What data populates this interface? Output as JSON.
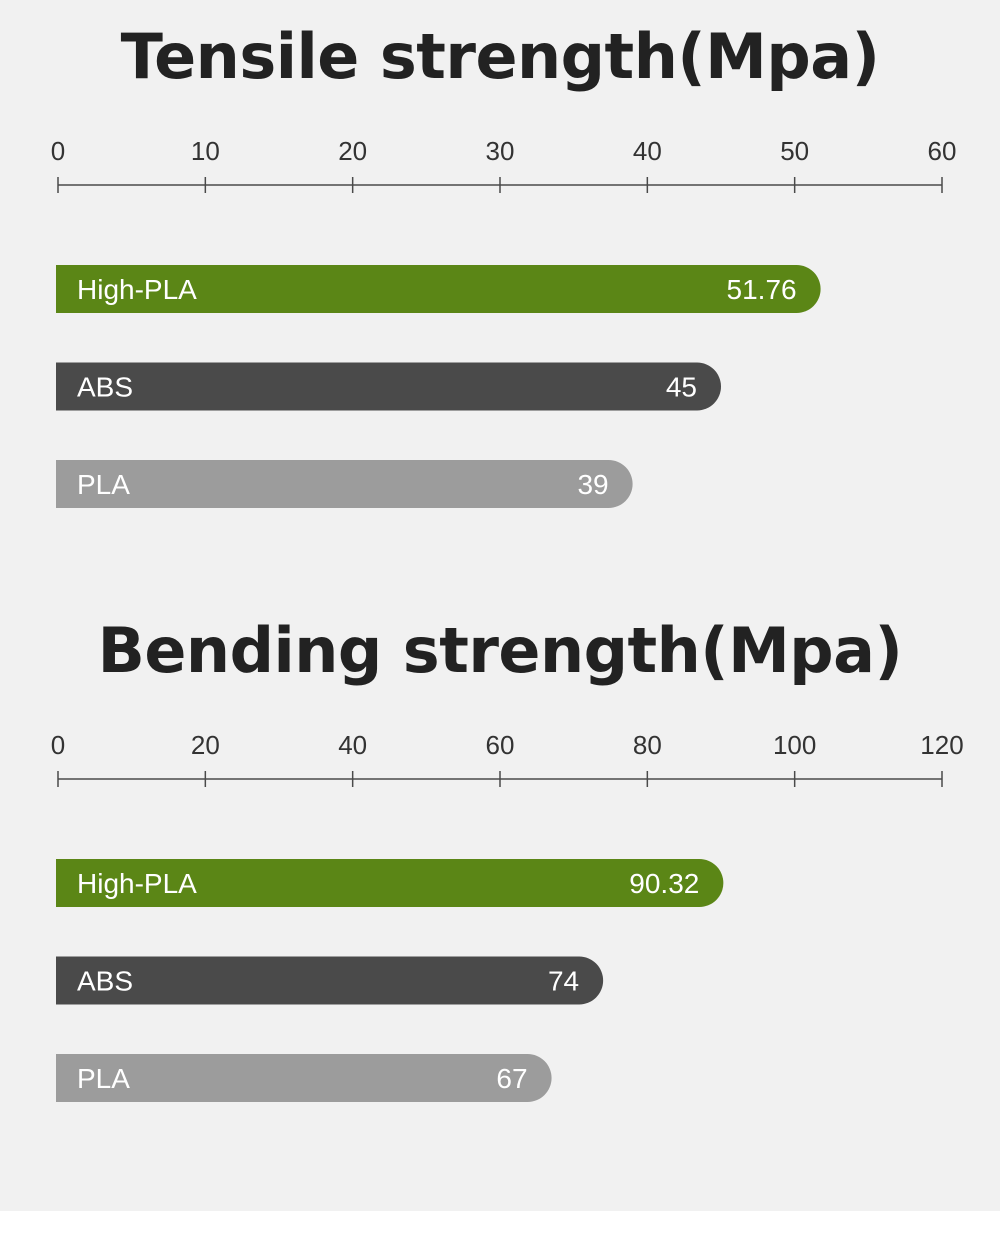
{
  "colors": {
    "High-PLA": "#5b8616",
    "ABS": "#4a4a4a",
    "PLA": "#9c9c9c",
    "background": "#f1f1f1",
    "title": "#222222"
  },
  "chart_data": [
    {
      "type": "bar",
      "orientation": "horizontal",
      "title": "Tensile strength(Mpa)",
      "categories": [
        "High-PLA",
        "ABS",
        "PLA"
      ],
      "values": [
        51.76,
        45,
        39
      ],
      "value_labels": [
        "51.76",
        "45",
        "39"
      ],
      "xlim": [
        0,
        60
      ],
      "ticks": [
        "0",
        "10",
        "20",
        "30",
        "40",
        "50",
        "60"
      ],
      "tick_values": [
        0,
        10,
        20,
        30,
        40,
        50,
        60
      ],
      "axis_position": "top",
      "grid": false,
      "legend": "none"
    },
    {
      "type": "bar",
      "orientation": "horizontal",
      "title": "Bending strength(Mpa)",
      "categories": [
        "High-PLA",
        "ABS",
        "PLA"
      ],
      "values": [
        90.32,
        74,
        67
      ],
      "value_labels": [
        "90.32",
        "74",
        "67"
      ],
      "xlim": [
        0,
        120
      ],
      "ticks": [
        "0",
        "20",
        "40",
        "60",
        "80",
        "100",
        "120"
      ],
      "tick_values": [
        0,
        20,
        40,
        60,
        80,
        100,
        120
      ],
      "axis_position": "top",
      "grid": false,
      "legend": "none"
    }
  ]
}
